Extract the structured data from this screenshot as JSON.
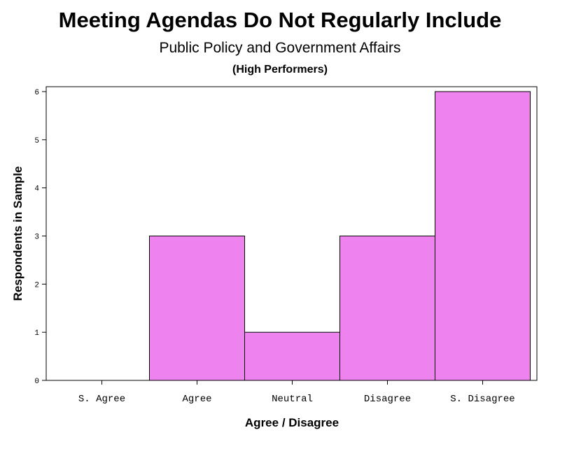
{
  "chart_data": {
    "type": "bar",
    "title": "Meeting Agendas Do Not Regularly Include",
    "subtitle": "Public Policy and Government Affairs",
    "subsubtitle": "(High Performers)",
    "xlabel": "Agree / Disagree",
    "ylabel": "Respondents in Sample",
    "categories": [
      "S. Agree",
      "Agree",
      "Neutral",
      "Disagree",
      "S. Disagree"
    ],
    "values": [
      0,
      3,
      1,
      3,
      6
    ],
    "ylim": [
      0,
      6
    ],
    "yticks": [
      "0",
      "1",
      "2",
      "3",
      "4",
      "5",
      "6"
    ],
    "bar_color": "#ee82ee",
    "grid": false
  }
}
